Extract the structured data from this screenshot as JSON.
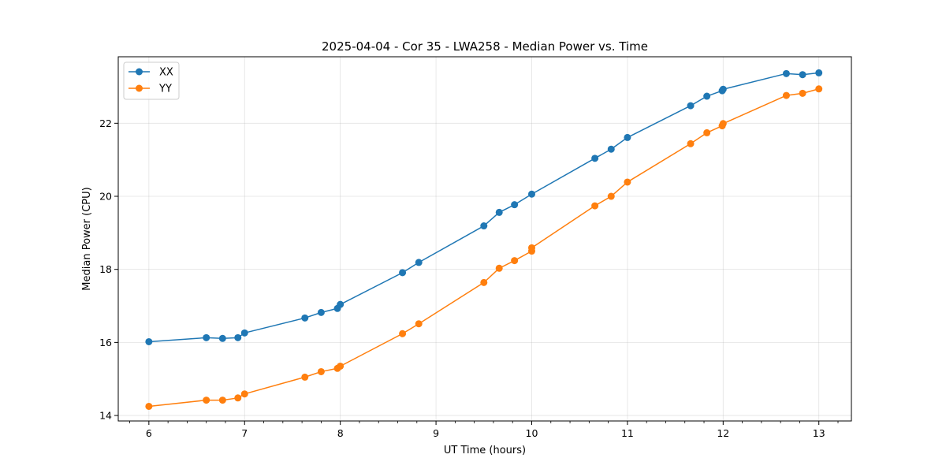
{
  "chart_data": {
    "type": "line",
    "title": "2025-04-04 - Cor 35 - LWA258 - Median Power vs. Time",
    "xlabel": "UT Time (hours)",
    "ylabel": "Median Power (CPU)",
    "xlim": [
      5.68,
      13.34
    ],
    "ylim": [
      13.85,
      23.82
    ],
    "x_ticks": [
      6,
      7,
      8,
      9,
      10,
      11,
      12,
      13
    ],
    "y_ticks": [
      14,
      16,
      18,
      20,
      22
    ],
    "x_minor_step": 0.2,
    "grid": true,
    "legend_position": "top-left",
    "series": [
      {
        "name": "XX",
        "color": "#1f77b4",
        "x": [
          6.0,
          6.6,
          6.77,
          6.93,
          7.0,
          7.63,
          7.8,
          7.97,
          8.0,
          8.65,
          8.82,
          9.5,
          9.66,
          9.82,
          10.0,
          10.66,
          10.83,
          11.0,
          11.66,
          11.83,
          11.99,
          12.0,
          12.66,
          12.83,
          13.0
        ],
        "y": [
          16.02,
          16.13,
          16.11,
          16.13,
          16.26,
          16.67,
          16.82,
          16.93,
          17.04,
          17.91,
          18.19,
          19.19,
          19.56,
          19.77,
          20.06,
          21.04,
          21.29,
          21.61,
          22.48,
          22.74,
          22.89,
          22.93,
          23.36,
          23.33,
          23.38
        ]
      },
      {
        "name": "YY",
        "color": "#ff7f0e",
        "x": [
          6.0,
          6.6,
          6.77,
          6.93,
          7.0,
          7.63,
          7.8,
          7.97,
          8.0,
          8.65,
          8.82,
          9.5,
          9.66,
          9.82,
          10.0,
          10.0,
          10.66,
          10.83,
          11.0,
          11.66,
          11.83,
          11.99,
          12.0,
          12.66,
          12.83,
          13.0
        ],
        "y": [
          14.25,
          14.42,
          14.42,
          14.48,
          14.59,
          15.05,
          15.2,
          15.29,
          15.35,
          16.24,
          16.51,
          17.64,
          18.03,
          18.24,
          18.5,
          18.59,
          19.74,
          20.0,
          20.39,
          21.44,
          21.74,
          21.93,
          21.99,
          22.76,
          22.82,
          22.94
        ]
      }
    ]
  }
}
